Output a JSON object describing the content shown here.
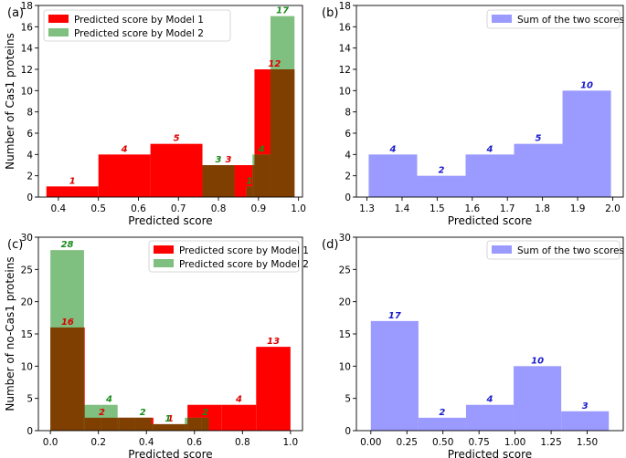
{
  "colors": {
    "model1": "#ff0000",
    "model2": "#7fbf7f",
    "overlap": "#7f3f00",
    "sum": "#9a9aff",
    "label_model1": "#dd0000",
    "label_model2": "#1a8a1a",
    "label_sum": "#1a1acc"
  },
  "chart_data": [
    {
      "panel": "(a)",
      "type": "bar",
      "xlabel": "Predicted score",
      "ylabel": "Number of Cas1 proteins",
      "xlim": [
        0.35,
        1.01
      ],
      "ylim": [
        0,
        18
      ],
      "xticks": [
        "0.4",
        "0.5",
        "0.6",
        "0.7",
        "0.8",
        "0.9",
        "1.0"
      ],
      "xtick_values": [
        0.4,
        0.5,
        0.6,
        0.7,
        0.8,
        0.9,
        1.0
      ],
      "yticks": [
        "0",
        "2",
        "4",
        "6",
        "8",
        "10",
        "12",
        "14",
        "16",
        "18"
      ],
      "ytick_values": [
        0,
        2,
        4,
        6,
        8,
        10,
        12,
        14,
        16,
        18
      ],
      "legend": "top-left",
      "series": [
        {
          "name": "Predicted score by Model 1",
          "color_key": "model1",
          "bins": [
            {
              "x0": 0.37,
              "x1": 0.5,
              "value": 1,
              "label": "1"
            },
            {
              "x0": 0.5,
              "x1": 0.63,
              "value": 4,
              "label": "4"
            },
            {
              "x0": 0.63,
              "x1": 0.76,
              "value": 5,
              "label": "5"
            },
            {
              "x0": 0.76,
              "x1": 0.89,
              "value": 3,
              "label": "3"
            },
            {
              "x0": 0.89,
              "x1": 0.99,
              "value": 12,
              "label": "12"
            }
          ]
        },
        {
          "name": "Predicted score by Model 2",
          "color_key": "model2",
          "bins": [
            {
              "x0": 0.76,
              "x1": 0.84,
              "value": 3,
              "label": "3"
            },
            {
              "x0": 0.84,
              "x1": 0.87,
              "value": 0,
              "label": ""
            },
            {
              "x0": 0.87,
              "x1": 0.885,
              "value": 1,
              "label": "1"
            },
            {
              "x0": 0.885,
              "x1": 0.93,
              "value": 4,
              "label": "4"
            },
            {
              "x0": 0.93,
              "x1": 0.99,
              "value": 17,
              "label": "17"
            }
          ]
        }
      ]
    },
    {
      "panel": "(b)",
      "type": "bar",
      "xlabel": "Predicted score",
      "ylabel": "",
      "xlim": [
        1.27,
        2.03
      ],
      "ylim": [
        0,
        18
      ],
      "xticks": [
        "1.3",
        "1.4",
        "1.5",
        "1.6",
        "1.7",
        "1.8",
        "1.9",
        "2.0"
      ],
      "xtick_values": [
        1.3,
        1.4,
        1.5,
        1.6,
        1.7,
        1.8,
        1.9,
        2.0
      ],
      "yticks": [
        "0",
        "2",
        "4",
        "6",
        "8",
        "10",
        "12",
        "14",
        "16",
        "18"
      ],
      "ytick_values": [
        0,
        2,
        4,
        6,
        8,
        10,
        12,
        14,
        16,
        18
      ],
      "legend": "top-right",
      "series": [
        {
          "name": "Sum of the two scores",
          "color_key": "sum",
          "bins": [
            {
              "x0": 1.305,
              "x1": 1.443,
              "value": 4,
              "label": "4"
            },
            {
              "x0": 1.443,
              "x1": 1.581,
              "value": 2,
              "label": "2"
            },
            {
              "x0": 1.581,
              "x1": 1.719,
              "value": 4,
              "label": "4"
            },
            {
              "x0": 1.719,
              "x1": 1.857,
              "value": 5,
              "label": "5"
            },
            {
              "x0": 1.857,
              "x1": 1.995,
              "value": 10,
              "label": "10"
            }
          ]
        }
      ]
    },
    {
      "panel": "(c)",
      "type": "bar",
      "xlabel": "Predicted score",
      "ylabel": "Number of no-Cas1 proteins",
      "xlim": [
        -0.05,
        1.05
      ],
      "ylim": [
        0,
        30
      ],
      "xticks": [
        "0.0",
        "0.2",
        "0.4",
        "0.6",
        "0.8",
        "1.0"
      ],
      "xtick_values": [
        0.0,
        0.2,
        0.4,
        0.6,
        0.8,
        1.0
      ],
      "yticks": [
        "0",
        "5",
        "10",
        "15",
        "20",
        "25",
        "30"
      ],
      "ytick_values": [
        0,
        5,
        10,
        15,
        20,
        25,
        30
      ],
      "legend": "top-right",
      "series": [
        {
          "name": "Predicted score by Model 1",
          "color_key": "model1",
          "bins": [
            {
              "x0": 0.0,
              "x1": 0.143,
              "value": 16,
              "label": "16"
            },
            {
              "x0": 0.143,
              "x1": 0.286,
              "value": 2,
              "label": "2"
            },
            {
              "x0": 0.286,
              "x1": 0.429,
              "value": 2,
              "label": ""
            },
            {
              "x0": 0.429,
              "x1": 0.571,
              "value": 1,
              "label": "1"
            },
            {
              "x0": 0.571,
              "x1": 0.714,
              "value": 4,
              "label": ""
            },
            {
              "x0": 0.714,
              "x1": 0.857,
              "value": 4,
              "label": "4"
            },
            {
              "x0": 0.857,
              "x1": 1.0,
              "value": 13,
              "label": "13"
            }
          ]
        },
        {
          "name": "Predicted score by Model 2",
          "color_key": "model2",
          "bins": [
            {
              "x0": 0.0,
              "x1": 0.14,
              "value": 28,
              "label": "28"
            },
            {
              "x0": 0.14,
              "x1": 0.21,
              "value": 4,
              "label": ""
            },
            {
              "x0": 0.21,
              "x1": 0.28,
              "value": 4,
              "label": "4"
            },
            {
              "x0": 0.28,
              "x1": 0.35,
              "value": 2,
              "label": ""
            },
            {
              "x0": 0.35,
              "x1": 0.42,
              "value": 2,
              "label": "2"
            },
            {
              "x0": 0.42,
              "x1": 0.56,
              "value": 1,
              "label": "1"
            },
            {
              "x0": 0.56,
              "x1": 0.63,
              "value": 2,
              "label": ""
            },
            {
              "x0": 0.63,
              "x1": 0.66,
              "value": 2,
              "label": "2"
            }
          ]
        }
      ]
    },
    {
      "panel": "(d)",
      "type": "bar",
      "xlabel": "Predicted score",
      "ylabel": "",
      "xlim": [
        -0.1,
        1.75
      ],
      "ylim": [
        0,
        30
      ],
      "xticks": [
        "0.00",
        "0.25",
        "0.50",
        "0.75",
        "1.00",
        "1.25",
        "1.50"
      ],
      "xtick_values": [
        0.0,
        0.25,
        0.5,
        0.75,
        1.0,
        1.25,
        1.5
      ],
      "yticks": [
        "0",
        "5",
        "10",
        "15",
        "20",
        "25",
        "30"
      ],
      "ytick_values": [
        0,
        5,
        10,
        15,
        20,
        25,
        30
      ],
      "legend": "top-right",
      "series": [
        {
          "name": "Sum of the two scores",
          "color_key": "sum",
          "bins": [
            {
              "x0": 0.0,
              "x1": 0.33,
              "value": 17,
              "label": "17"
            },
            {
              "x0": 0.33,
              "x1": 0.66,
              "value": 2,
              "label": "2"
            },
            {
              "x0": 0.66,
              "x1": 0.99,
              "value": 4,
              "label": "4"
            },
            {
              "x0": 0.99,
              "x1": 1.32,
              "value": 10,
              "label": "10"
            },
            {
              "x0": 1.32,
              "x1": 1.65,
              "value": 3,
              "label": "3"
            }
          ]
        }
      ]
    }
  ]
}
